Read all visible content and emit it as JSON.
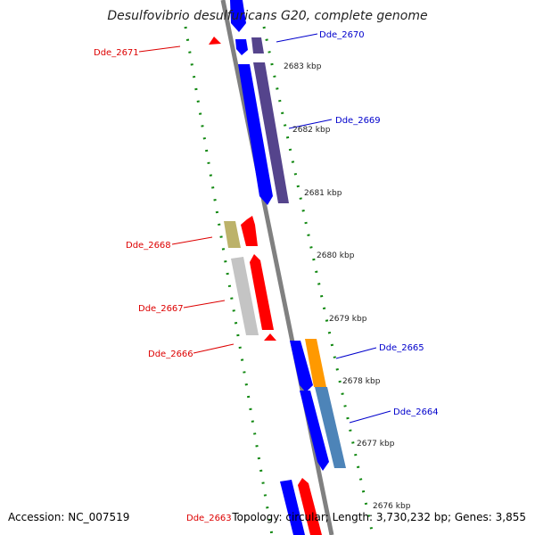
{
  "title": "Desulfovibrio desulfuricans G20, complete genome",
  "footer": {
    "accession": "Accession: NC_007519",
    "summary": "Topology: circular; Length: 3,730,232 bp; Genes: 3,855"
  },
  "colors": {
    "backbone": "#808080",
    "forward_strand": "#0000ff",
    "reverse_strand": "#ff0000",
    "dots": "#118811",
    "forward_label": "#0000cc",
    "reverse_label": "#dd0000"
  },
  "ruler": [
    {
      "label": "2683 kbp"
    },
    {
      "label": "2682 kbp"
    },
    {
      "label": "2681 kbp"
    },
    {
      "label": "2680 kbp"
    },
    {
      "label": "2679 kbp"
    },
    {
      "label": "2678 kbp"
    },
    {
      "label": "2677 kbp"
    },
    {
      "label": "2676 kbp"
    }
  ],
  "genes": [
    {
      "name": "Dde_2671",
      "strand": "reverse"
    },
    {
      "name": "Dde_2670",
      "strand": "forward"
    },
    {
      "name": "Dde_2669",
      "strand": "forward"
    },
    {
      "name": "Dde_2668",
      "strand": "reverse"
    },
    {
      "name": "Dde_2667",
      "strand": "reverse"
    },
    {
      "name": "Dde_2666",
      "strand": "reverse"
    },
    {
      "name": "Dde_2665",
      "strand": "forward"
    },
    {
      "name": "Dde_2664",
      "strand": "forward"
    },
    {
      "name": "Dde_2663",
      "strand": "reverse"
    }
  ]
}
